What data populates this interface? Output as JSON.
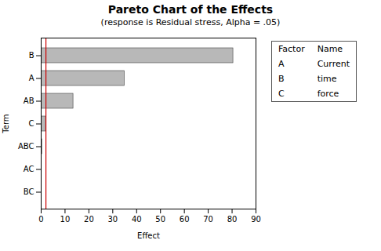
{
  "chart_data": {
    "type": "bar",
    "orientation": "horizontal",
    "title": "Pareto Chart of the Effects",
    "subtitle": "(response is Residual stress, Alpha = .05)",
    "categories": [
      "B",
      "A",
      "AB",
      "C",
      "ABC",
      "AC",
      "BC"
    ],
    "values": [
      80.5,
      35.0,
      13.5,
      2.0,
      0.4,
      0.15,
      0.05
    ],
    "color": "#b8b8b8",
    "xlabel": "Effect",
    "ylabel": "Term",
    "xlim": [
      0,
      90
    ],
    "xticks": [
      0,
      10,
      20,
      30,
      40,
      50,
      60,
      70,
      80,
      90
    ],
    "reference_line": {
      "value": 2.0,
      "color": "#cc0000"
    },
    "factor_table": {
      "headers": [
        "Factor",
        "Name"
      ],
      "rows": [
        [
          "A",
          "Current"
        ],
        [
          "B",
          "time"
        ],
        [
          "C",
          "force"
        ]
      ]
    }
  }
}
